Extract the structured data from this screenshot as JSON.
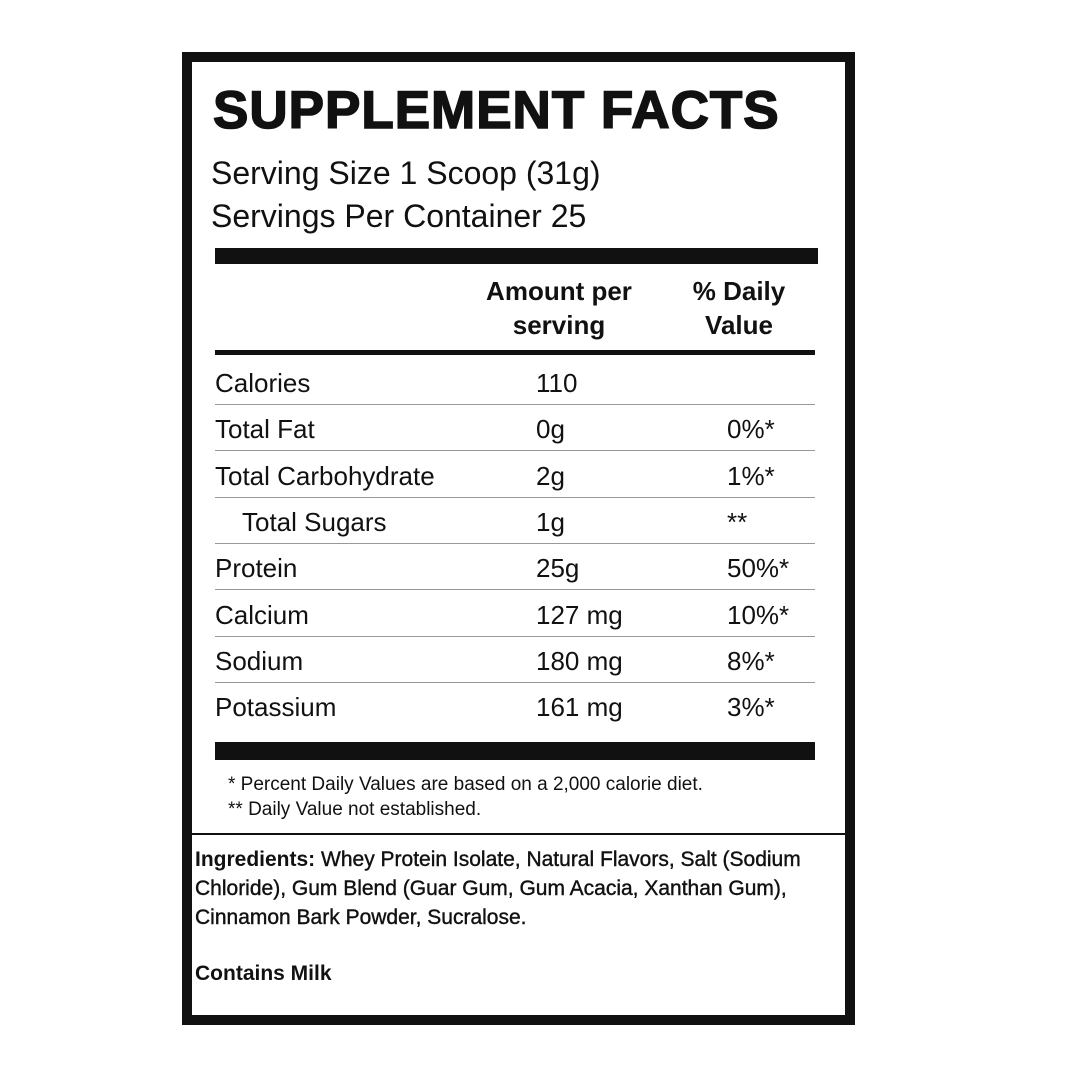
{
  "title": "SUPPLEMENT FACTS",
  "serving_size": "Serving Size 1 Scoop (31g)",
  "servings_per_container": "Servings Per Container 25",
  "table": {
    "header": {
      "amount": "Amount per serving",
      "daily_value": "% Daily Value"
    },
    "rows": [
      {
        "name": "Calories",
        "amount": "110"
      },
      {
        "name": "Total Fat",
        "amount": "0g",
        "daily_value": "0%*"
      },
      {
        "name": "Total Carbohydrate",
        "amount": "2g",
        "daily_value": "1%*"
      },
      {
        "name": "Total Sugars",
        "amount": "1g",
        "daily_value": "**",
        "indent": true
      },
      {
        "name": "Protein",
        "amount": "25g",
        "daily_value": "50%*"
      },
      {
        "name": "Calcium",
        "amount": "127 mg",
        "daily_value": "10%*"
      },
      {
        "name": "Sodium",
        "amount": "180 mg",
        "daily_value": "8%*"
      },
      {
        "name": "Potassium",
        "amount": "161 mg",
        "daily_value": "3%*"
      }
    ]
  },
  "footnotes": [
    "* Percent Daily Values are based on a 2,000 calorie diet.",
    "** Daily Value not established."
  ],
  "ingredients": {
    "label": "Ingredients:",
    "text": "Whey Protein Isolate, Natural Flavors, Salt (Sodium Chloride), Gum Blend (Guar Gum, Gum Acacia, Xanthan Gum), Cinnamon Bark Powder, Sucralose."
  },
  "contains": "Contains Milk"
}
